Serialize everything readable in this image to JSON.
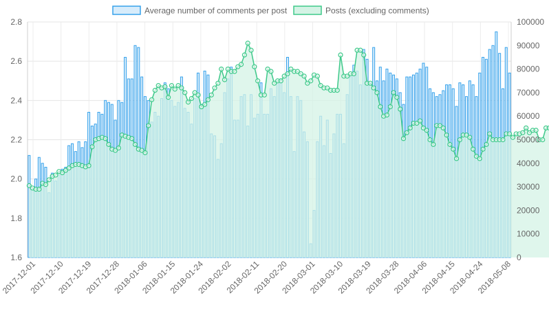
{
  "chart_data": {
    "type": "bar",
    "legend": {
      "placement": "top"
    },
    "grid": true,
    "y_left": {
      "min": 1.6,
      "max": 2.8,
      "ticks": [
        "1.6",
        "1.8",
        "2.0",
        "2.2",
        "2.4",
        "2.6",
        "2.8"
      ]
    },
    "y_right": {
      "min": 0,
      "max": 100000,
      "ticks": [
        "0",
        "10000",
        "20000",
        "30000",
        "40000",
        "50000",
        "60000",
        "70000",
        "80000",
        "90000",
        "100000"
      ]
    },
    "x_tick_labels": [
      "2017-12-01",
      "2017-12-10",
      "2017-12-19",
      "2017-12-28",
      "2018-01-06",
      "2018-01-15",
      "2018-01-24",
      "2018-02-02",
      "2018-02-11",
      "2018-02-20",
      "2018-03-01",
      "2018-03-10",
      "2018-03-19",
      "2018-03-28",
      "2018-04-06",
      "2018-04-15",
      "2018-04-24",
      "2018-05-08"
    ],
    "series": [
      {
        "name": "Average number of comments per post",
        "kind": "bar",
        "axis": "left",
        "color": "#36a2eb",
        "fill": "#d7ecfb",
        "values": [
          2.12,
          1.95,
          2.0,
          2.11,
          2.08,
          2.06,
          1.93,
          2.03,
          1.99,
          2.02,
          2.05,
          2.06,
          2.17,
          2.18,
          2.14,
          2.19,
          2.16,
          2.19,
          2.34,
          2.27,
          2.28,
          2.34,
          2.33,
          2.4,
          2.39,
          2.38,
          2.3,
          2.4,
          2.39,
          2.62,
          2.51,
          2.51,
          2.68,
          2.67,
          2.52,
          2.42,
          2.4,
          2.29,
          2.34,
          2.32,
          2.41,
          2.49,
          2.46,
          2.4,
          2.37,
          2.39,
          2.52,
          2.36,
          2.34,
          2.28,
          2.41,
          2.54,
          2.38,
          2.55,
          2.53,
          2.23,
          2.22,
          2.1,
          2.18,
          2.44,
          2.51,
          2.57,
          2.3,
          2.3,
          2.42,
          2.43,
          2.27,
          2.43,
          2.31,
          2.33,
          2.49,
          2.33,
          2.33,
          2.46,
          2.42,
          2.5,
          2.51,
          2.44,
          2.62,
          2.42,
          2.14,
          2.42,
          2.4,
          2.24,
          2.19,
          1.67,
          1.84,
          2.19,
          2.32,
          2.17,
          2.3,
          2.13,
          2.23,
          2.33,
          2.33,
          2.18,
          2.43,
          2.52,
          2.58,
          2.55,
          2.48,
          2.66,
          2.61,
          2.49,
          2.67,
          2.5,
          2.57,
          2.5,
          2.56,
          2.54,
          2.53,
          2.51,
          2.44,
          2.38,
          2.52,
          2.52,
          2.53,
          2.54,
          2.56,
          2.59,
          2.57,
          2.46,
          2.44,
          2.42,
          2.43,
          2.45,
          2.48,
          2.48,
          2.46,
          2.37,
          2.49,
          2.48,
          2.42,
          2.5,
          2.48,
          2.42,
          2.54,
          2.62,
          2.61,
          2.66,
          2.68,
          2.75,
          2.64,
          2.46,
          2.67,
          2.54
        ]
      },
      {
        "name": "Posts (excluding comments)",
        "kind": "area-line",
        "axis": "right",
        "color": "#3ec98a",
        "fill": "#d4f3e5",
        "values": [
          30500,
          29500,
          29000,
          29000,
          31500,
          31000,
          33000,
          34500,
          35000,
          36500,
          36000,
          37000,
          38000,
          39000,
          39500,
          39500,
          39000,
          38500,
          39000,
          47000,
          50000,
          50500,
          51000,
          50500,
          48000,
          46000,
          45500,
          46500,
          52000,
          51500,
          51000,
          50500,
          48000,
          46000,
          45500,
          44500,
          56000,
          67000,
          71000,
          73000,
          72000,
          72500,
          68000,
          73000,
          71500,
          73000,
          72000,
          70000,
          66000,
          67500,
          70000,
          69000,
          64000,
          65000,
          67000,
          69000,
          72000,
          74000,
          80000,
          75500,
          80000,
          79000,
          79000,
          81000,
          82000,
          86000,
          91000,
          88000,
          81000,
          75000,
          69000,
          69000,
          80000,
          79000,
          74000,
          75000,
          75000,
          77000,
          78000,
          80000,
          79000,
          79000,
          78000,
          77000,
          74000,
          75000,
          77500,
          77000,
          73000,
          72000,
          72000,
          71000,
          71000,
          71000,
          86000,
          77000,
          77000,
          78000,
          78000,
          88000,
          88000,
          86000,
          74000,
          74000,
          72000,
          70000,
          64000,
          60000,
          60500,
          64000,
          70000,
          68000,
          63000,
          50500,
          53000,
          55000,
          57000,
          57000,
          58000,
          55000,
          54000,
          50000,
          48000,
          56000,
          56000,
          55000,
          52000,
          48000,
          46000,
          42000,
          50000,
          52000,
          52000,
          51000,
          46000,
          43000,
          42000,
          46000,
          48000,
          52500,
          50000,
          50000,
          50000,
          50000,
          52500,
          52500,
          51000,
          52500,
          52500,
          53000,
          55000,
          53000,
          54000,
          54000,
          50000,
          50000,
          55000,
          55000,
          54000,
          52500,
          50000,
          49000,
          50000,
          50000,
          52000
        ]
      }
    ]
  }
}
